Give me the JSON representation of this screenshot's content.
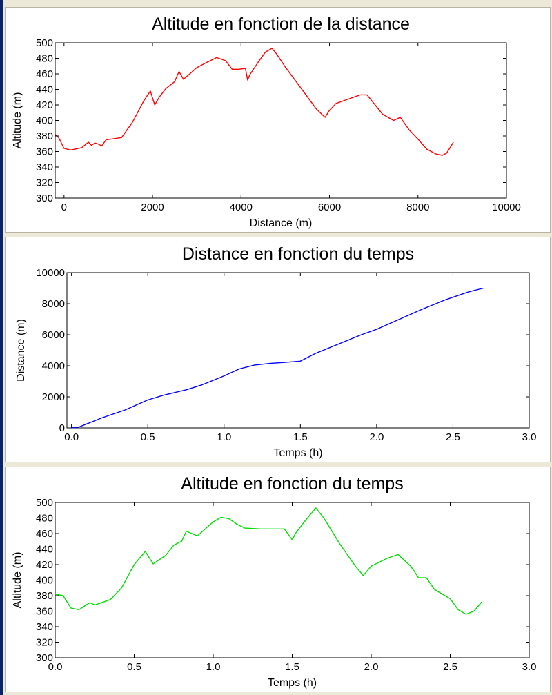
{
  "chart_data": [
    {
      "type": "line",
      "title": "Altitude en fonction de la distance",
      "xlabel": "Distance (m)",
      "ylabel": "Altitude (m)",
      "xlim": [
        -200,
        10000
      ],
      "ylim": [
        300,
        500
      ],
      "grid": false,
      "x_ticks": [
        {
          "value": 0,
          "label": "0"
        },
        {
          "value": 2000,
          "label": "2000"
        },
        {
          "value": 4000,
          "label": "4000"
        },
        {
          "value": 6000,
          "label": "6000"
        },
        {
          "value": 8000,
          "label": "8000"
        },
        {
          "value": 10000,
          "label": "10000"
        }
      ],
      "y_ticks": [
        {
          "value": 300,
          "label": "300"
        },
        {
          "value": 320,
          "label": "320"
        },
        {
          "value": 340,
          "label": "340"
        },
        {
          "value": 360,
          "label": "360"
        },
        {
          "value": 380,
          "label": "380"
        },
        {
          "value": 400,
          "label": "400"
        },
        {
          "value": 420,
          "label": "420"
        },
        {
          "value": 440,
          "label": "440"
        },
        {
          "value": 460,
          "label": "460"
        },
        {
          "value": 480,
          "label": "480"
        },
        {
          "value": 500,
          "label": "500"
        }
      ],
      "series": [
        {
          "color": "#ff0000",
          "x": [
            -200,
            -120,
            0,
            150,
            400,
            550,
            620,
            700,
            800,
            850,
            950,
            1300,
            1550,
            1800,
            1950,
            2050,
            2150,
            2300,
            2500,
            2600,
            2700,
            2800,
            3000,
            3200,
            3450,
            3650,
            3800,
            3950,
            4100,
            4150,
            4200,
            4400,
            4550,
            4700,
            4800,
            5000,
            5300,
            5700,
            5900,
            6000,
            6150,
            6400,
            6700,
            6850,
            7200,
            7450,
            7600,
            7800,
            8000,
            8200,
            8400,
            8550,
            8650,
            8800
          ],
          "y": [
            382,
            378,
            364,
            362,
            365,
            372,
            368,
            371,
            369,
            367,
            375,
            378,
            398,
            425,
            438,
            420,
            430,
            441,
            450,
            463,
            453,
            458,
            468,
            474,
            481,
            477,
            466,
            466,
            467,
            452,
            459,
            476,
            488,
            493,
            486,
            469,
            446,
            415,
            404,
            413,
            422,
            427,
            433,
            433,
            408,
            400,
            404,
            388,
            376,
            363,
            357,
            355,
            358,
            372
          ]
        }
      ]
    },
    {
      "type": "line",
      "title": "Distance en fonction du temps",
      "xlabel": "Temps (h)",
      "ylabel": "Distance (m)",
      "xlim": [
        -0.03,
        3.0
      ],
      "ylim": [
        0,
        10000
      ],
      "grid": false,
      "x_ticks": [
        {
          "value": 0.0,
          "label": "0.0"
        },
        {
          "value": 0.5,
          "label": "0.5"
        },
        {
          "value": 1.0,
          "label": "1.0"
        },
        {
          "value": 1.5,
          "label": "1.5"
        },
        {
          "value": 2.0,
          "label": "2.0"
        },
        {
          "value": 2.5,
          "label": "2.5"
        },
        {
          "value": 3.0,
          "label": "3.0"
        }
      ],
      "y_ticks": [
        {
          "value": 0,
          "label": "0"
        },
        {
          "value": 2000,
          "label": "2000"
        },
        {
          "value": 4000,
          "label": "4000"
        },
        {
          "value": 6000,
          "label": "6000"
        },
        {
          "value": 8000,
          "label": "8000"
        },
        {
          "value": 10000,
          "label": "10000"
        }
      ],
      "series": [
        {
          "color": "#0000ff",
          "x": [
            0.0,
            0.05,
            0.2,
            0.35,
            0.5,
            0.6,
            0.75,
            0.85,
            1.0,
            1.1,
            1.2,
            1.3,
            1.4,
            1.5,
            1.6,
            1.75,
            1.9,
            2.0,
            2.15,
            2.3,
            2.45,
            2.6,
            2.7
          ],
          "y": [
            0,
            60,
            650,
            1150,
            1800,
            2100,
            2450,
            2750,
            3350,
            3800,
            4050,
            4150,
            4220,
            4300,
            4800,
            5400,
            6000,
            6350,
            7000,
            7650,
            8250,
            8750,
            9000
          ]
        }
      ]
    },
    {
      "type": "line",
      "title": "Altitude en fonction du temps",
      "xlabel": "Temps (h)",
      "ylabel": "Altitude (m)",
      "xlim": [
        0.0,
        3.0
      ],
      "ylim": [
        300,
        500
      ],
      "grid": false,
      "x_ticks": [
        {
          "value": 0.0,
          "label": "0.0"
        },
        {
          "value": 0.5,
          "label": "0.5"
        },
        {
          "value": 1.0,
          "label": "1.0"
        },
        {
          "value": 1.5,
          "label": "1.5"
        },
        {
          "value": 2.0,
          "label": "2.0"
        },
        {
          "value": 2.5,
          "label": "2.5"
        },
        {
          "value": 3.0,
          "label": "3.0"
        }
      ],
      "y_ticks": [
        {
          "value": 300,
          "label": "300"
        },
        {
          "value": 320,
          "label": "320"
        },
        {
          "value": 340,
          "label": "340"
        },
        {
          "value": 360,
          "label": "360"
        },
        {
          "value": 380,
          "label": "380"
        },
        {
          "value": 400,
          "label": "400"
        },
        {
          "value": 420,
          "label": "420"
        },
        {
          "value": 440,
          "label": "440"
        },
        {
          "value": 460,
          "label": "460"
        },
        {
          "value": 480,
          "label": "480"
        },
        {
          "value": 500,
          "label": "500"
        }
      ],
      "series": [
        {
          "color": "#00dd00",
          "x": [
            0.0,
            0.05,
            0.1,
            0.15,
            0.22,
            0.25,
            0.28,
            0.35,
            0.42,
            0.5,
            0.57,
            0.62,
            0.7,
            0.75,
            0.8,
            0.83,
            0.9,
            1.0,
            1.05,
            1.1,
            1.15,
            1.2,
            1.3,
            1.45,
            1.5,
            1.52,
            1.58,
            1.65,
            1.7,
            1.8,
            1.9,
            1.95,
            2.0,
            2.1,
            2.17,
            2.25,
            2.3,
            2.35,
            2.4,
            2.5,
            2.55,
            2.6,
            2.65,
            2.7
          ],
          "y": [
            382,
            380,
            364,
            362,
            371,
            368,
            370,
            375,
            390,
            420,
            437,
            421,
            432,
            445,
            450,
            463,
            457,
            475,
            481,
            479,
            472,
            467,
            466,
            466,
            452,
            460,
            476,
            493,
            480,
            447,
            418,
            406,
            418,
            428,
            433,
            418,
            403,
            403,
            388,
            376,
            362,
            356,
            360,
            372
          ]
        }
      ]
    }
  ]
}
